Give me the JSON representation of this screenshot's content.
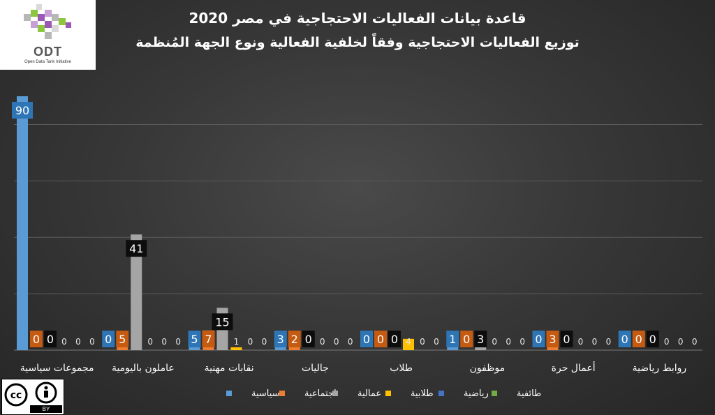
{
  "logo": {
    "wordmark": "ODT",
    "caption": "Open Data Tank Initiative"
  },
  "license": {
    "label": "BY"
  },
  "colors": {
    "background": "#383838",
    "grid": "#5a5a5a",
    "text": "#ffffff",
    "label_box_blue": "#2e75b6",
    "label_box_orange": "#c55a11",
    "label_box_black": "#0d0d0d"
  },
  "chart_data": {
    "type": "bar",
    "title": "قاعدة بيانات الفعاليات الاحتجاجية في مصر 2020",
    "subtitle": "توزيع الفعاليات الاحتجاجية وفقاً لخلفية الفعالية ونوع الجهة المُنظمة",
    "categories": [
      "مجموعات سياسية",
      "عاملون باليومية",
      "نقابات مهنية",
      "جاليات",
      "طلاب",
      "موظفون",
      "أعمال حرة",
      "روابط رياضية"
    ],
    "series": [
      {
        "name": "سياسية",
        "color": "#5b9bd5",
        "values": [
          90,
          0,
          5,
          3,
          0,
          1,
          0,
          0
        ]
      },
      {
        "name": "اجتماعية",
        "color": "#ed7d31",
        "values": [
          0,
          5,
          7,
          2,
          0,
          0,
          3,
          0
        ]
      },
      {
        "name": "عمالية",
        "color": "#a5a5a5",
        "values": [
          0,
          41,
          15,
          0,
          0,
          3,
          0,
          0
        ]
      },
      {
        "name": "طلابية",
        "color": "#ffc000",
        "values": [
          0,
          0,
          1,
          0,
          4,
          0,
          0,
          0
        ]
      },
      {
        "name": "رياضية",
        "color": "#4472c4",
        "values": [
          0,
          0,
          0,
          0,
          0,
          0,
          0,
          0
        ]
      },
      {
        "name": "طائفية",
        "color": "#70ad47",
        "values": [
          0,
          0,
          0,
          0,
          0,
          0,
          0,
          0
        ]
      }
    ],
    "ylim": [
      0,
      90
    ],
    "grid": true,
    "legend_position": "bottom"
  }
}
